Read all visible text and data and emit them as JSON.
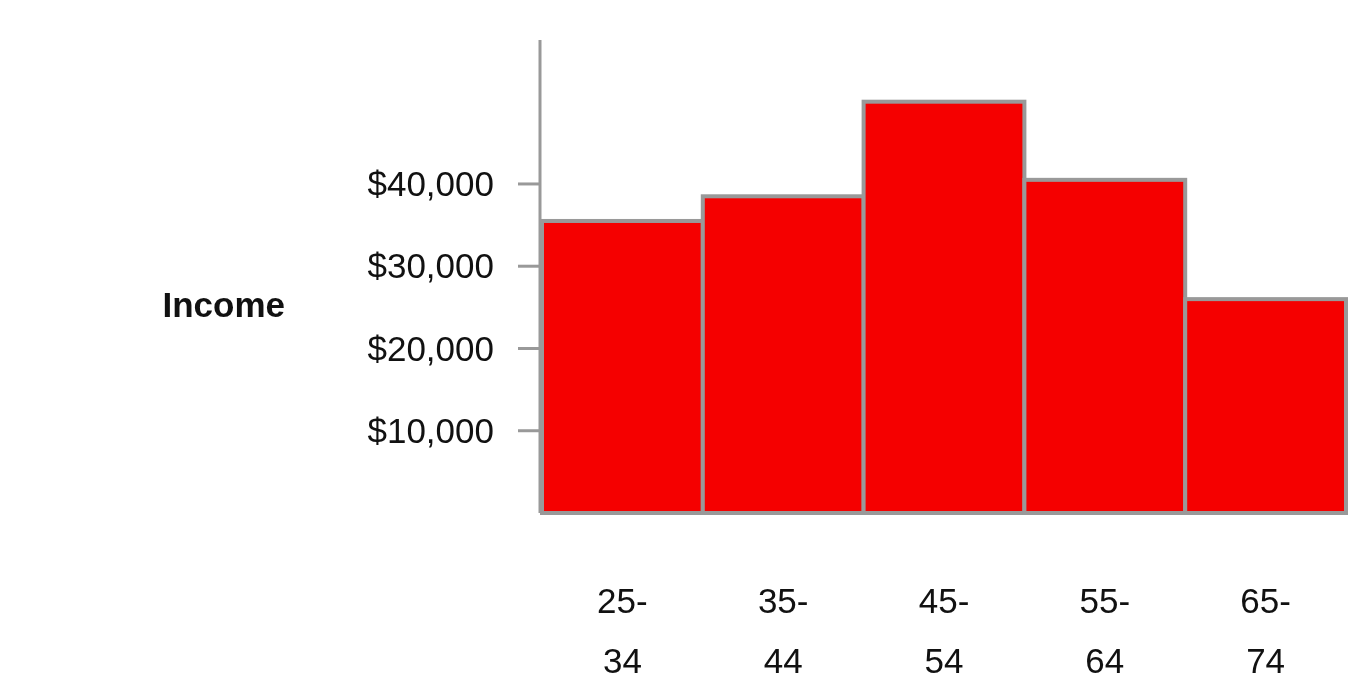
{
  "chart_data": {
    "type": "bar",
    "ylabel": "Income",
    "categories": [
      "25-34",
      "35-44",
      "45-54",
      "55-64",
      "65-74"
    ],
    "values": [
      35500,
      38500,
      50000,
      40500,
      26000
    ],
    "color": "#f50000",
    "ylim": [
      0,
      57500
    ],
    "yticks": [
      {
        "value": 10000,
        "label": "$10,000"
      },
      {
        "value": 20000,
        "label": "$20,000"
      },
      {
        "value": 30000,
        "label": "$30,000"
      },
      {
        "value": 40000,
        "label": "$40,000"
      }
    ],
    "grid": false
  }
}
